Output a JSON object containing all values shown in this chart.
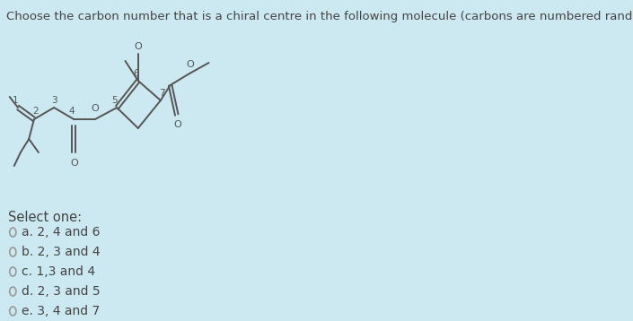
{
  "title": "Choose the carbon number that is a chiral centre in the following molecule (carbons are numbered randomly).",
  "bg_color": "#cce8f0",
  "molecule_color": "#555555",
  "select_one_text": "Select one:",
  "options": [
    {
      "label": "a. 2, 4 and 6",
      "filled": false
    },
    {
      "label": "b. 2, 3 and 4",
      "filled": false
    },
    {
      "label": "c. 1,3 and 4",
      "filled": false
    },
    {
      "label": "d. 2, 3 and 5",
      "filled": false
    },
    {
      "label": "e. 3, 4 and 7",
      "filled": false
    }
  ],
  "option_circle_color": "#999999",
  "option_filled_color": "#555555",
  "text_color": "#444444",
  "title_fontsize": 9.5,
  "option_fontsize": 10,
  "label_fontsize": 7.5,
  "o_fontsize": 8
}
